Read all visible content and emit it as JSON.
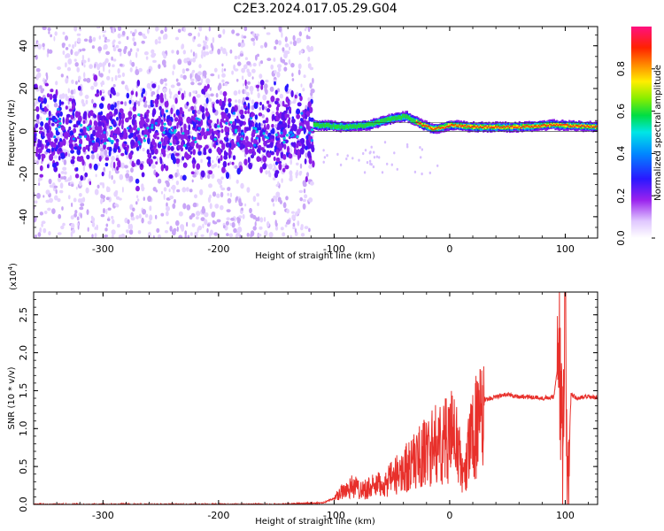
{
  "title": "C2E3.2024.017.05.29.G04",
  "chart_data": [
    {
      "type": "heatmap",
      "xlabel": "Height of straight line (km)",
      "ylabel": "Frequency (Hz)",
      "xlim": [
        -360,
        128
      ],
      "ylim": [
        -50,
        49
      ],
      "xticks": [
        -300,
        -200,
        -100,
        0,
        100
      ],
      "yticks": [
        -40,
        -20,
        0,
        20,
        40
      ],
      "colorbar": {
        "label": "Normalized spectral amplitude",
        "range": [
          0.0,
          1.0
        ],
        "ticks": [
          0.0,
          0.2,
          0.4,
          0.6,
          0.8
        ],
        "tick_labels": [
          "0.0",
          "0.2",
          "0.4",
          "0.6",
          "0.8"
        ],
        "colormap": "rainbow (white-purple-blue-cyan-green-yellow-red-magenta)"
      },
      "signal_track_hz": [
        {
          "x": -118,
          "y": 3
        },
        {
          "x": -90,
          "y": 2
        },
        {
          "x": -70,
          "y": 3
        },
        {
          "x": -50,
          "y": 6
        },
        {
          "x": -38,
          "y": 7
        },
        {
          "x": -28,
          "y": 4
        },
        {
          "x": -15,
          "y": 1
        },
        {
          "x": -5,
          "y": 2
        },
        {
          "x": 0,
          "y": 3
        },
        {
          "x": 20,
          "y": 2
        },
        {
          "x": 60,
          "y": 2
        },
        {
          "x": 90,
          "y": 3
        },
        {
          "x": 128,
          "y": 2
        }
      ],
      "grid": false
    },
    {
      "type": "line",
      "xlabel": "Height of straight line (km)",
      "ylabel": "SNR (10 * v/v)",
      "ylabel_multiplier": "(x10",
      "ylabel_multiplier_exp": "4",
      "ylabel_multiplier_close": ")",
      "xlim": [
        -360,
        128
      ],
      "ylim": [
        0,
        2.8
      ],
      "xticks": [
        -300,
        -200,
        -100,
        0,
        100
      ],
      "yticks": [
        0.0,
        0.5,
        1.0,
        1.5,
        2.0,
        2.5
      ],
      "ytick_labels": [
        "0.0",
        "0.5",
        "1.0",
        "1.5",
        "2.0",
        "2.5"
      ],
      "series_color": "#e8302b",
      "series": [
        {
          "x": [
            -360,
            -300,
            -200,
            -150,
            -110,
            -100,
            -95,
            -85,
            -75,
            -65,
            -55,
            -45,
            -35,
            -25,
            -15,
            -5,
            5,
            12,
            20,
            30,
            40,
            50,
            60,
            70,
            80,
            90,
            95,
            98,
            100,
            102,
            105,
            110,
            120,
            128
          ],
          "y": [
            0.0,
            0.0,
            0.0,
            0.0,
            0.02,
            0.08,
            0.2,
            0.3,
            0.25,
            0.3,
            0.35,
            0.5,
            0.65,
            0.8,
            0.95,
            1.05,
            1.15,
            0.4,
            1.25,
            1.38,
            1.42,
            1.45,
            1.42,
            1.42,
            1.4,
            1.42,
            2.0,
            0.3,
            2.75,
            0.2,
            1.45,
            1.4,
            1.42,
            1.4
          ]
        }
      ],
      "grid": false
    }
  ]
}
